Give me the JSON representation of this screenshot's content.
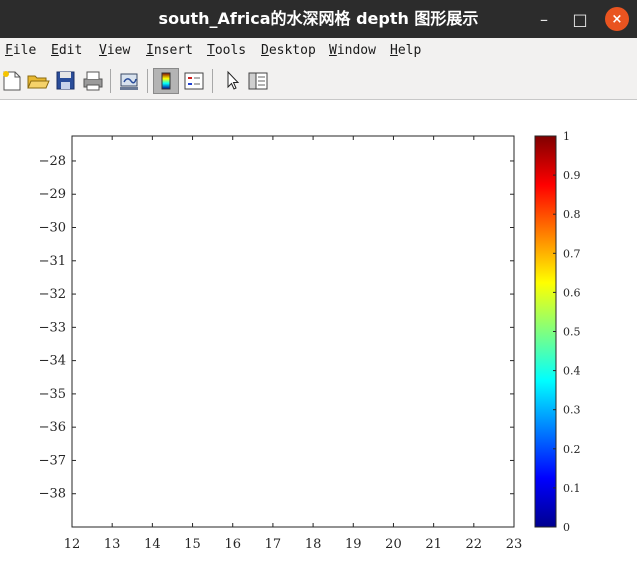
{
  "window": {
    "title": "south_Africa的水深网格 depth 图形展示",
    "minimize_glyph": "–",
    "maximize_glyph": "□",
    "close_glyph": "×"
  },
  "menu": {
    "items": [
      "File",
      "Edit",
      "View",
      "Insert",
      "Tools",
      "Desktop",
      "Window",
      "Help"
    ],
    "dock_glyph": "↘"
  },
  "toolbar": {
    "buttons": [
      {
        "name": "new-figure-icon",
        "pressed": false
      },
      {
        "name": "open-file-icon",
        "pressed": false
      },
      {
        "name": "save-icon",
        "pressed": false
      },
      {
        "name": "print-icon",
        "pressed": false
      },
      {
        "name": "link-plot-icon",
        "pressed": false
      },
      {
        "name": "insert-colorbar-icon",
        "pressed": true
      },
      {
        "name": "insert-legend-icon",
        "pressed": false
      },
      {
        "name": "edit-plot-arrow-icon",
        "pressed": false
      },
      {
        "name": "open-property-inspector-icon",
        "pressed": false
      }
    ]
  },
  "chart_data": {
    "type": "heatmap",
    "title": "",
    "xlabel": "",
    "ylabel": "",
    "xlim": [
      12,
      23
    ],
    "ylim": [
      -39,
      -27.25
    ],
    "x_ticks": [
      "12",
      "13",
      "14",
      "15",
      "16",
      "17",
      "18",
      "19",
      "20",
      "21",
      "22",
      "23"
    ],
    "y_ticks": [
      "−28",
      "−29",
      "−30",
      "−31",
      "−32",
      "−33",
      "−34",
      "−35",
      "−36",
      "−37",
      "−38"
    ],
    "y_tick_values": [
      -28,
      -29,
      -30,
      -31,
      -32,
      -33,
      -34,
      -35,
      -36,
      -37,
      -38
    ],
    "data": [],
    "grid": false,
    "colorbar": {
      "colormap": "jet",
      "clim": [
        0,
        1
      ],
      "ticks": [
        "0",
        "0.1",
        "0.2",
        "0.3",
        "0.4",
        "0.5",
        "0.6",
        "0.7",
        "0.8",
        "0.9",
        "1"
      ],
      "tick_values": [
        0,
        0.1,
        0.2,
        0.3,
        0.4,
        0.5,
        0.6,
        0.7,
        0.8,
        0.9,
        1
      ]
    }
  }
}
